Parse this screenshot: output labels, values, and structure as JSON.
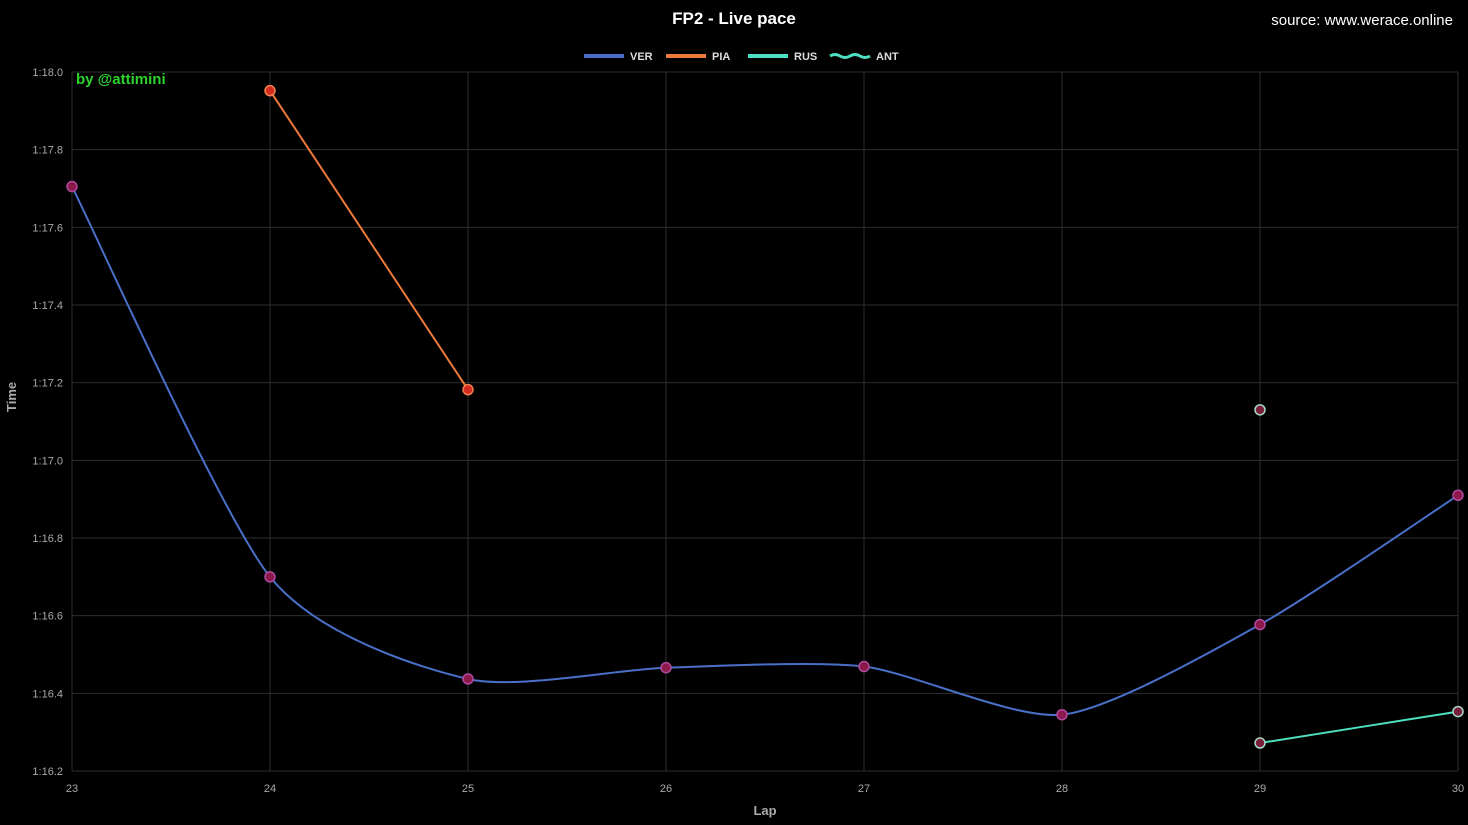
{
  "header": {
    "title": "FP2 - Live pace",
    "source": "source: www.werace.online",
    "watermark": "by @attimini"
  },
  "chart_data": {
    "type": "line",
    "title": "FP2 - Live pace",
    "xlabel": "Lap",
    "ylabel": "Time",
    "x_ticks": [
      23,
      24,
      25,
      26,
      27,
      28,
      29,
      30
    ],
    "xlim": [
      23,
      30
    ],
    "y_ticks": [
      "1:16.2",
      "1:16.4",
      "1:16.6",
      "1:16.8",
      "1:17.0",
      "1:17.2",
      "1:17.4",
      "1:17.6",
      "1:17.8",
      "1:18.0"
    ],
    "y_tick_values": [
      76.2,
      76.4,
      76.6,
      76.8,
      77.0,
      77.2,
      77.4,
      77.6,
      77.8,
      78.0
    ],
    "ylim": [
      76.2,
      78.0
    ],
    "grid": true,
    "legend_position": "top-center",
    "series": [
      {
        "name": "VER",
        "color": "#4a6fc8",
        "marker_fill": "#8b1a4a",
        "marker_stroke": "#b04aa0",
        "x": [
          23,
          24,
          25,
          26,
          27,
          28,
          29,
          30
        ],
        "y": [
          77.705,
          76.7,
          76.437,
          76.466,
          76.469,
          76.345,
          76.577,
          76.91
        ]
      },
      {
        "name": "PIA",
        "color": "#ee7a3a",
        "marker_fill": "#d42b1f",
        "marker_stroke": "#f08050",
        "x": [
          24,
          25
        ],
        "y": [
          77.952,
          77.182
        ]
      },
      {
        "name": "RUS",
        "color": "#4de0c0",
        "marker_fill": "#7a1f3a",
        "marker_stroke": "#a8d8c8",
        "x": [
          29,
          30
        ],
        "y": [
          76.272,
          76.353
        ]
      },
      {
        "name": "ANT",
        "color": "#4de0c0",
        "marker_fill": "#7a1f3a",
        "marker_stroke": "#a8d8c8",
        "x": [
          29
        ],
        "y": [
          77.13
        ]
      }
    ]
  }
}
